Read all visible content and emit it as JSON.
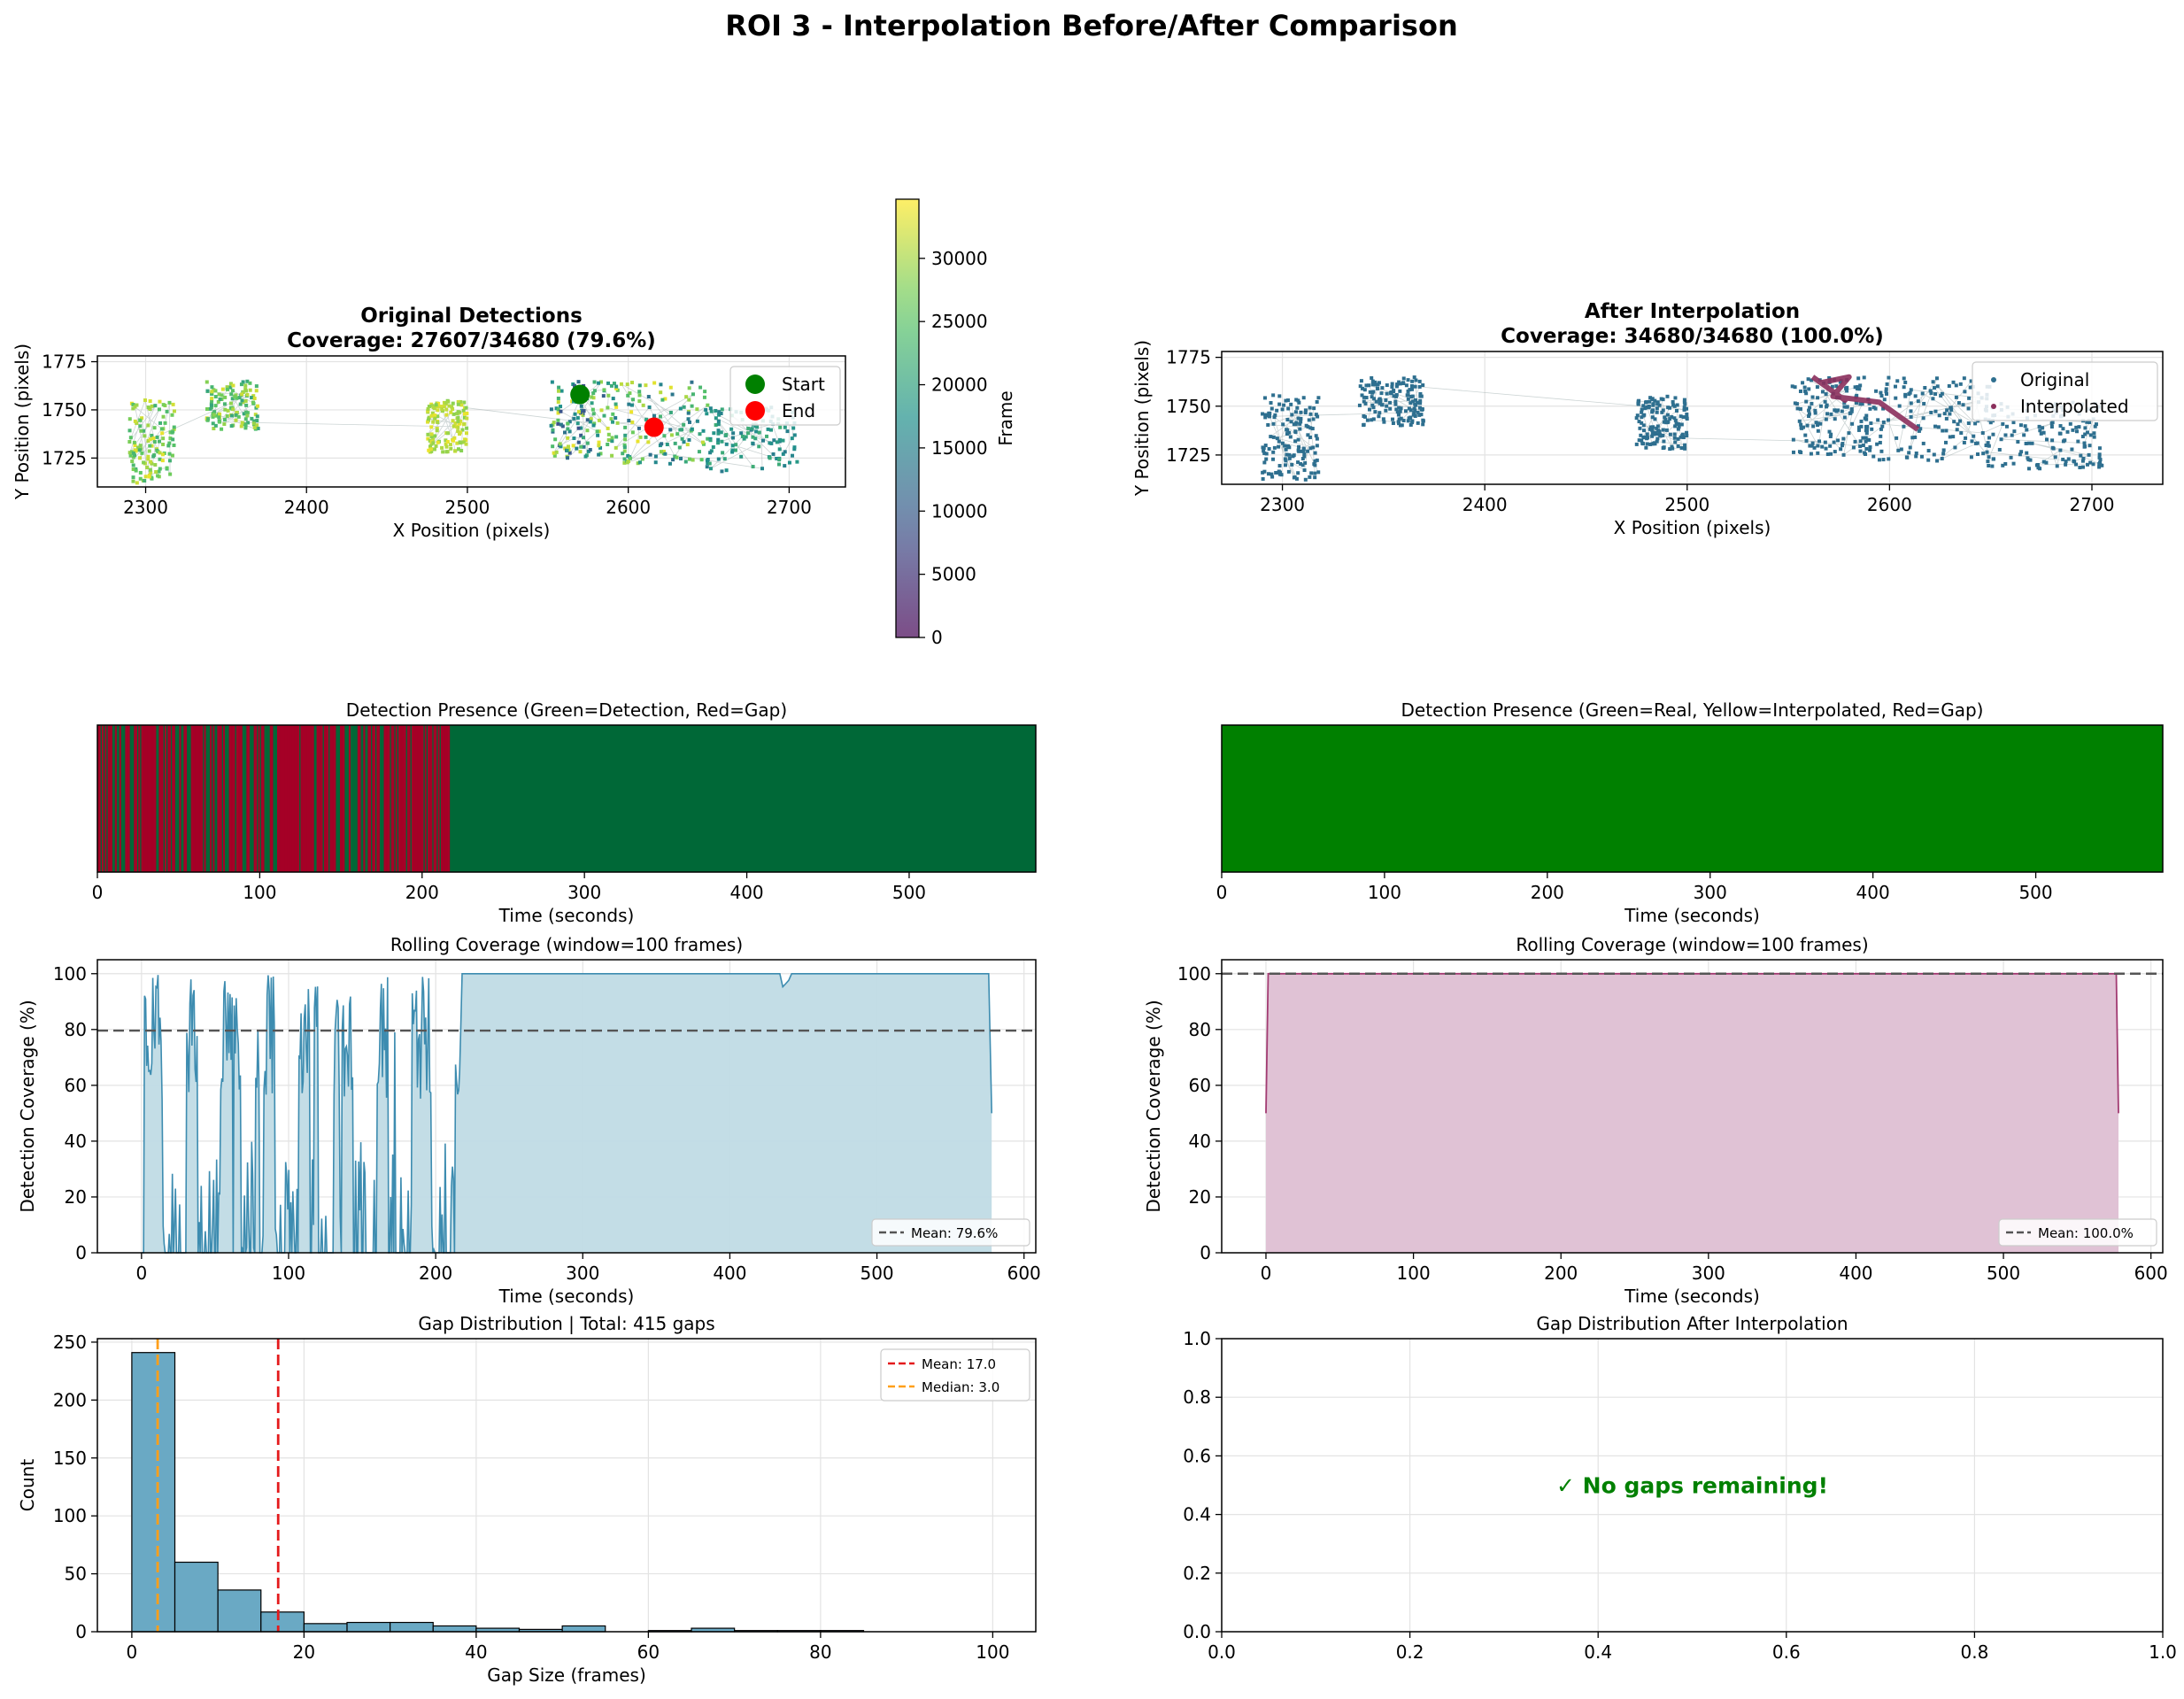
{
  "suptitle": "ROI 3 - Interpolation Before/After Comparison",
  "colors": {
    "green_detection": "#006837",
    "red_gap": "#a50026",
    "interp_green": "#008000",
    "blue_line": "#3d8cb0",
    "blue_fill": "#c0dbe5",
    "plum_line": "#a23b72",
    "plum_fill": "#e0c2d5",
    "hist_bar": "#6aa9c4",
    "scatter_blue": "#2e6f8f",
    "interp_traj": "#8b2f5c",
    "mean_line": "#e41a1c",
    "median_line": "#ff9f1a",
    "no_gaps_text": "#008000"
  },
  "chart_data": [
    {
      "id": "original-detections",
      "type": "scatter",
      "title": "Original Detections",
      "subtitle": "Coverage: 27607/34680 (79.6%)",
      "xlabel": "X Position (pixels)",
      "ylabel": "Y Position (pixels)",
      "xlim": [
        2270,
        2735
      ],
      "ylim": [
        1710,
        1778
      ],
      "xticks": [
        2300,
        2400,
        2500,
        2600,
        2700
      ],
      "yticks": [
        1725,
        1750,
        1775
      ],
      "grid": true,
      "legend": [
        "Start",
        "End"
      ],
      "legend_position": "upper right",
      "start": [
        2570,
        1758
      ],
      "end": [
        2616,
        1741
      ],
      "clusters": [
        {
          "x": [
            2290,
            2318
          ],
          "y": [
            1712,
            1756
          ],
          "frame": [
            22000,
            34000
          ]
        },
        {
          "x": [
            2338,
            2370
          ],
          "y": [
            1740,
            1765
          ],
          "frame": [
            20000,
            33000
          ]
        },
        {
          "x": [
            2475,
            2500
          ],
          "y": [
            1728,
            1755
          ],
          "frame": [
            28000,
            34000
          ]
        },
        {
          "x": [
            2552,
            2590
          ],
          "y": [
            1725,
            1765
          ],
          "frame": [
            8000,
            34000
          ]
        },
        {
          "x": [
            2590,
            2650
          ],
          "y": [
            1722,
            1765
          ],
          "frame": [
            12000,
            34000
          ]
        },
        {
          "x": [
            2648,
            2705
          ],
          "y": [
            1718,
            1752
          ],
          "frame": [
            14000,
            22000
          ]
        }
      ],
      "colorbar": {
        "label": "Frame",
        "ticks": [
          0,
          5000,
          10000,
          15000,
          20000,
          25000,
          30000
        ],
        "range": [
          0,
          34680
        ],
        "colormap": "viridis"
      }
    },
    {
      "id": "after-interpolation",
      "type": "scatter",
      "title": "After Interpolation",
      "subtitle": "Coverage: 34680/34680 (100.0%)",
      "xlabel": "X Position (pixels)",
      "ylabel": "Y Position (pixels)",
      "xlim": [
        2270,
        2735
      ],
      "ylim": [
        1710,
        1778
      ],
      "xticks": [
        2300,
        2400,
        2500,
        2600,
        2700
      ],
      "yticks": [
        1725,
        1750,
        1775
      ],
      "grid": true,
      "legend": [
        "Original",
        "Interpolated"
      ],
      "legend_position": "upper right",
      "clusters": [
        {
          "x": [
            2290,
            2318
          ],
          "y": [
            1712,
            1756
          ]
        },
        {
          "x": [
            2338,
            2370
          ],
          "y": [
            1740,
            1765
          ]
        },
        {
          "x": [
            2475,
            2500
          ],
          "y": [
            1728,
            1755
          ]
        },
        {
          "x": [
            2552,
            2590
          ],
          "y": [
            1725,
            1765
          ]
        },
        {
          "x": [
            2590,
            2650
          ],
          "y": [
            1722,
            1765
          ]
        },
        {
          "x": [
            2648,
            2705
          ],
          "y": [
            1718,
            1752
          ]
        }
      ],
      "interpolated_path": [
        [
          2562,
          1765
        ],
        [
          2578,
          1753
        ],
        [
          2566,
          1762
        ],
        [
          2580,
          1765
        ],
        [
          2572,
          1755
        ],
        [
          2595,
          1752
        ],
        [
          2614,
          1738
        ]
      ]
    },
    {
      "id": "presence-before",
      "type": "heatmap",
      "title": "Detection Presence (Green=Detection, Red=Gap)",
      "xlabel": "Time (seconds)",
      "xlim": [
        0,
        578
      ],
      "xticks": [
        0,
        100,
        200,
        300,
        400,
        500
      ],
      "gapped_until": 217
    },
    {
      "id": "presence-after",
      "type": "heatmap",
      "title": "Detection Presence (Green=Real, Yellow=Interpolated, Red=Gap)",
      "xlabel": "Time (seconds)",
      "xlim": [
        0,
        578
      ],
      "xticks": [
        0,
        100,
        200,
        300,
        400,
        500
      ]
    },
    {
      "id": "rolling-before",
      "type": "area",
      "title": "Rolling Coverage (window=100 frames)",
      "xlabel": "Time (seconds)",
      "ylabel": "Detection Coverage (%)",
      "xlim": [
        -30,
        608
      ],
      "ylim": [
        0,
        105
      ],
      "xticks": [
        0,
        100,
        200,
        300,
        400,
        500,
        600
      ],
      "yticks": [
        0,
        20,
        40,
        60,
        80,
        100
      ],
      "mean": 79.6,
      "legend": [
        "Mean: 79.6%"
      ],
      "legend_position": "lower right",
      "x_end": 578,
      "grid": true
    },
    {
      "id": "rolling-after",
      "type": "area",
      "title": "Rolling Coverage (window=100 frames)",
      "xlabel": "Time (seconds)",
      "ylabel": "Detection Coverage (%)",
      "xlim": [
        -30,
        608
      ],
      "ylim": [
        0,
        105
      ],
      "xticks": [
        0,
        100,
        200,
        300,
        400,
        500,
        600
      ],
      "yticks": [
        0,
        20,
        40,
        60,
        80,
        100
      ],
      "mean": 100.0,
      "legend": [
        "Mean: 100.0%"
      ],
      "legend_position": "lower right",
      "x": [
        0,
        1.5,
        576.5,
        578
      ],
      "y": [
        50,
        100,
        100,
        50
      ],
      "grid": true
    },
    {
      "id": "gap-histogram",
      "type": "bar",
      "title": "Gap Distribution | Total: 415 gaps",
      "xlabel": "Gap Size (frames)",
      "ylabel": "Count",
      "xlim": [
        -4,
        105
      ],
      "ylim": [
        0,
        253
      ],
      "xticks": [
        0,
        20,
        40,
        60,
        80,
        100
      ],
      "yticks": [
        0,
        50,
        100,
        150,
        200,
        250
      ],
      "bin_edges": [
        0,
        5,
        10,
        15,
        20,
        25,
        30,
        35,
        40,
        45,
        50,
        55,
        60,
        65,
        70,
        75,
        80,
        85,
        90,
        95,
        100
      ],
      "values": [
        241,
        60,
        36,
        17,
        7,
        8,
        8,
        5,
        3,
        2,
        5,
        0,
        1,
        3,
        1,
        1,
        1,
        0,
        0,
        0
      ],
      "mean": 17.0,
      "median": 3.0,
      "legend": [
        "Mean: 17.0",
        "Median: 3.0"
      ],
      "legend_position": "upper right",
      "grid": true
    },
    {
      "id": "gap-after",
      "type": "scatter",
      "title": "Gap Distribution After Interpolation",
      "xlim": [
        0,
        1
      ],
      "ylim": [
        0,
        1
      ],
      "xticks": [
        "0.0",
        "0.2",
        "0.4",
        "0.6",
        "0.8",
        "1.0"
      ],
      "yticks": [
        "0.0",
        "0.2",
        "0.4",
        "0.6",
        "0.8",
        "1.0"
      ],
      "message": "✓ No gaps remaining!",
      "grid": true
    }
  ]
}
